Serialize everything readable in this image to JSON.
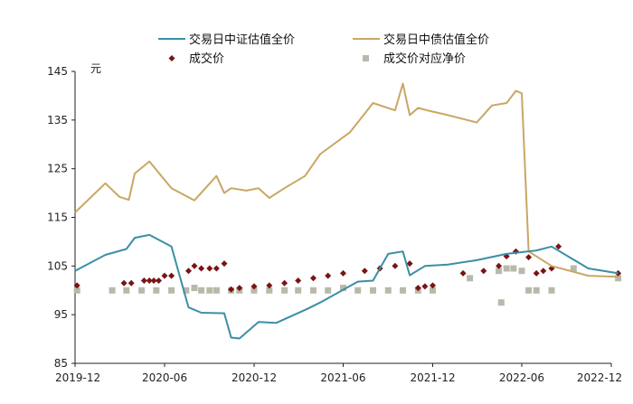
{
  "chart_data": {
    "type": "line",
    "unit_label": "元",
    "y_ticks": [
      "145",
      "135",
      "125",
      "115",
      "105",
      "95",
      "85"
    ],
    "x_ticks": [
      "2019-12",
      "2020-06",
      "2020-12",
      "2021-06",
      "2021-12",
      "2022-06",
      "2022-12"
    ],
    "xlim": [
      "2019-12",
      "2022-12"
    ],
    "ylim": [
      85,
      145
    ],
    "grid": false,
    "legend_position": "top",
    "series": [
      {
        "name": "交易日中证估值全价",
        "kind": "line",
        "color": "#3a8fa5",
        "points": [
          [
            "2019-12-01",
            104.0
          ],
          [
            "2020-02-01",
            107.3
          ],
          [
            "2020-03-15",
            108.5
          ],
          [
            "2020-04-01",
            110.8
          ],
          [
            "2020-05-01",
            111.4
          ],
          [
            "2020-06-15",
            109.0
          ],
          [
            "2020-07-20",
            96.5
          ],
          [
            "2020-08-15",
            95.4
          ],
          [
            "2020-10-01",
            95.3
          ],
          [
            "2020-10-15",
            90.3
          ],
          [
            "2020-11-01",
            90.1
          ],
          [
            "2020-12-10",
            93.5
          ],
          [
            "2021-01-15",
            93.3
          ],
          [
            "2021-03-20",
            96.2
          ],
          [
            "2021-04-15",
            97.5
          ],
          [
            "2021-07-01",
            101.8
          ],
          [
            "2021-08-01",
            102.0
          ],
          [
            "2021-09-01",
            107.5
          ],
          [
            "2021-10-01",
            108.0
          ],
          [
            "2021-10-15",
            103.1
          ],
          [
            "2021-11-15",
            105.0
          ],
          [
            "2022-01-01",
            105.3
          ],
          [
            "2022-03-01",
            106.2
          ],
          [
            "2022-05-01",
            107.5
          ],
          [
            "2022-07-01",
            108.2
          ],
          [
            "2022-08-01",
            109.0
          ],
          [
            "2022-10-15",
            104.5
          ],
          [
            "2022-12-15",
            103.5
          ]
        ]
      },
      {
        "name": "交易日中债估值全价",
        "kind": "line",
        "color": "#c9a764",
        "points": [
          [
            "2019-12-01",
            116.0
          ],
          [
            "2020-02-01",
            122.0
          ],
          [
            "2020-03-01",
            119.2
          ],
          [
            "2020-03-20",
            118.6
          ],
          [
            "2020-04-01",
            124.0
          ],
          [
            "2020-05-01",
            126.5
          ],
          [
            "2020-06-15",
            121.0
          ],
          [
            "2020-08-01",
            118.5
          ],
          [
            "2020-09-15",
            123.5
          ],
          [
            "2020-10-01",
            120.0
          ],
          [
            "2020-10-15",
            121.0
          ],
          [
            "2020-11-15",
            120.5
          ],
          [
            "2020-12-10",
            121.0
          ],
          [
            "2021-01-01",
            119.0
          ],
          [
            "2021-02-01",
            121.0
          ],
          [
            "2021-03-15",
            123.5
          ],
          [
            "2021-04-15",
            128.0
          ],
          [
            "2021-06-15",
            132.5
          ],
          [
            "2021-08-01",
            138.5
          ],
          [
            "2021-09-15",
            137.0
          ],
          [
            "2021-10-01",
            142.5
          ],
          [
            "2021-10-15",
            136.0
          ],
          [
            "2021-11-01",
            137.5
          ],
          [
            "2021-11-20",
            137.0
          ],
          [
            "2022-01-01",
            136.0
          ],
          [
            "2022-03-01",
            134.5
          ],
          [
            "2022-04-01",
            138.0
          ],
          [
            "2022-05-01",
            138.5
          ],
          [
            "2022-05-20",
            141.0
          ],
          [
            "2022-06-01",
            140.5
          ],
          [
            "2022-06-15",
            108.0
          ],
          [
            "2022-08-01",
            105.0
          ],
          [
            "2022-10-15",
            103.0
          ],
          [
            "2022-12-15",
            102.8
          ]
        ]
      },
      {
        "name": "成交价",
        "kind": "scatter",
        "marker": "diamond",
        "color": "#7a1414",
        "points": [
          [
            "2019-12-05",
            101.0
          ],
          [
            "2020-03-10",
            101.5
          ],
          [
            "2020-03-25",
            101.5
          ],
          [
            "2020-04-20",
            102.0
          ],
          [
            "2020-05-01",
            102.0
          ],
          [
            "2020-05-10",
            102.0
          ],
          [
            "2020-05-20",
            102.0
          ],
          [
            "2020-06-01",
            103.0
          ],
          [
            "2020-06-15",
            103.0
          ],
          [
            "2020-07-20",
            104.0
          ],
          [
            "2020-08-01",
            105.0
          ],
          [
            "2020-08-15",
            104.5
          ],
          [
            "2020-09-01",
            104.5
          ],
          [
            "2020-09-15",
            104.5
          ],
          [
            "2020-10-01",
            105.5
          ],
          [
            "2020-10-15",
            100.2
          ],
          [
            "2020-11-01",
            100.5
          ],
          [
            "2020-12-01",
            100.8
          ],
          [
            "2021-01-01",
            101.0
          ],
          [
            "2021-02-01",
            101.5
          ],
          [
            "2021-03-01",
            102.0
          ],
          [
            "2021-04-01",
            102.5
          ],
          [
            "2021-05-01",
            103.0
          ],
          [
            "2021-06-01",
            103.5
          ],
          [
            "2021-07-15",
            104.0
          ],
          [
            "2021-08-15",
            104.5
          ],
          [
            "2021-09-15",
            105.0
          ],
          [
            "2021-10-15",
            105.5
          ],
          [
            "2021-11-01",
            100.5
          ],
          [
            "2021-11-15",
            100.8
          ],
          [
            "2021-12-01",
            101.0
          ],
          [
            "2022-02-01",
            103.5
          ],
          [
            "2022-03-15",
            104.0
          ],
          [
            "2022-04-15",
            105.0
          ],
          [
            "2022-05-01",
            107.0
          ],
          [
            "2022-05-20",
            108.0
          ],
          [
            "2022-06-15",
            106.8
          ],
          [
            "2022-07-01",
            103.5
          ],
          [
            "2022-07-15",
            104.0
          ],
          [
            "2022-08-01",
            104.5
          ],
          [
            "2022-08-15",
            109.0
          ],
          [
            "2022-12-15",
            103.5
          ]
        ]
      },
      {
        "name": "成交价对应净价",
        "kind": "scatter",
        "marker": "square",
        "color": "#b9b9ab",
        "points": [
          [
            "2019-12-05",
            100.0
          ],
          [
            "2020-02-15",
            100.0
          ],
          [
            "2020-03-15",
            100.0
          ],
          [
            "2020-04-15",
            100.0
          ],
          [
            "2020-05-15",
            100.0
          ],
          [
            "2020-06-15",
            100.0
          ],
          [
            "2020-07-15",
            100.0
          ],
          [
            "2020-08-01",
            100.5
          ],
          [
            "2020-08-15",
            100.0
          ],
          [
            "2020-09-01",
            100.0
          ],
          [
            "2020-09-15",
            100.0
          ],
          [
            "2020-10-15",
            100.0
          ],
          [
            "2020-11-01",
            100.0
          ],
          [
            "2020-12-01",
            100.0
          ],
          [
            "2021-01-01",
            100.0
          ],
          [
            "2021-02-01",
            100.0
          ],
          [
            "2021-03-01",
            100.0
          ],
          [
            "2021-04-01",
            100.0
          ],
          [
            "2021-05-01",
            100.0
          ],
          [
            "2021-06-01",
            100.5
          ],
          [
            "2021-07-01",
            100.0
          ],
          [
            "2021-08-01",
            100.0
          ],
          [
            "2021-09-01",
            100.0
          ],
          [
            "2021-10-01",
            100.0
          ],
          [
            "2021-11-01",
            100.0
          ],
          [
            "2021-12-01",
            100.0
          ],
          [
            "2022-02-15",
            102.5
          ],
          [
            "2022-04-15",
            104.0
          ],
          [
            "2022-04-20",
            97.5
          ],
          [
            "2022-05-01",
            104.5
          ],
          [
            "2022-05-15",
            104.5
          ],
          [
            "2022-06-01",
            104.0
          ],
          [
            "2022-06-15",
            100.0
          ],
          [
            "2022-07-01",
            100.0
          ],
          [
            "2022-08-01",
            100.0
          ],
          [
            "2022-09-15",
            104.5
          ],
          [
            "2022-12-15",
            102.5
          ]
        ]
      }
    ]
  }
}
